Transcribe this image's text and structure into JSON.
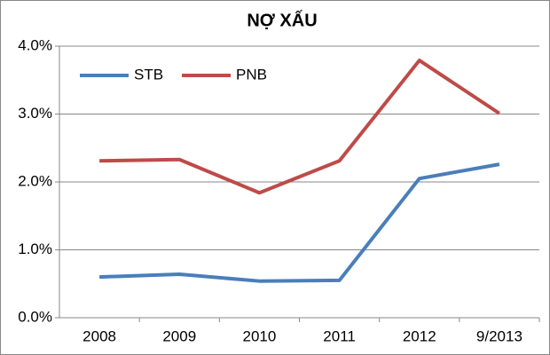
{
  "chart_data": {
    "type": "line",
    "title": "NỢ XẤU",
    "categories": [
      "2008",
      "2009",
      "2010",
      "2011",
      "2012",
      "9/2013"
    ],
    "series": [
      {
        "name": "STB",
        "color": "#4a7ebb",
        "values": [
          0.6,
          0.64,
          0.54,
          0.55,
          2.05,
          2.26
        ]
      },
      {
        "name": "PNB",
        "color": "#be4b48",
        "values": [
          2.31,
          2.33,
          1.84,
          2.31,
          3.79,
          3.01
        ]
      }
    ],
    "ylim": [
      0,
      4
    ],
    "yticks": [
      {
        "value": 0,
        "label": "0.0%"
      },
      {
        "value": 1,
        "label": "1.0%"
      },
      {
        "value": 2,
        "label": "2.0%"
      },
      {
        "value": 3,
        "label": "3.0%"
      },
      {
        "value": 4,
        "label": "4.0%"
      }
    ],
    "grid": true,
    "legend": "top-left"
  }
}
